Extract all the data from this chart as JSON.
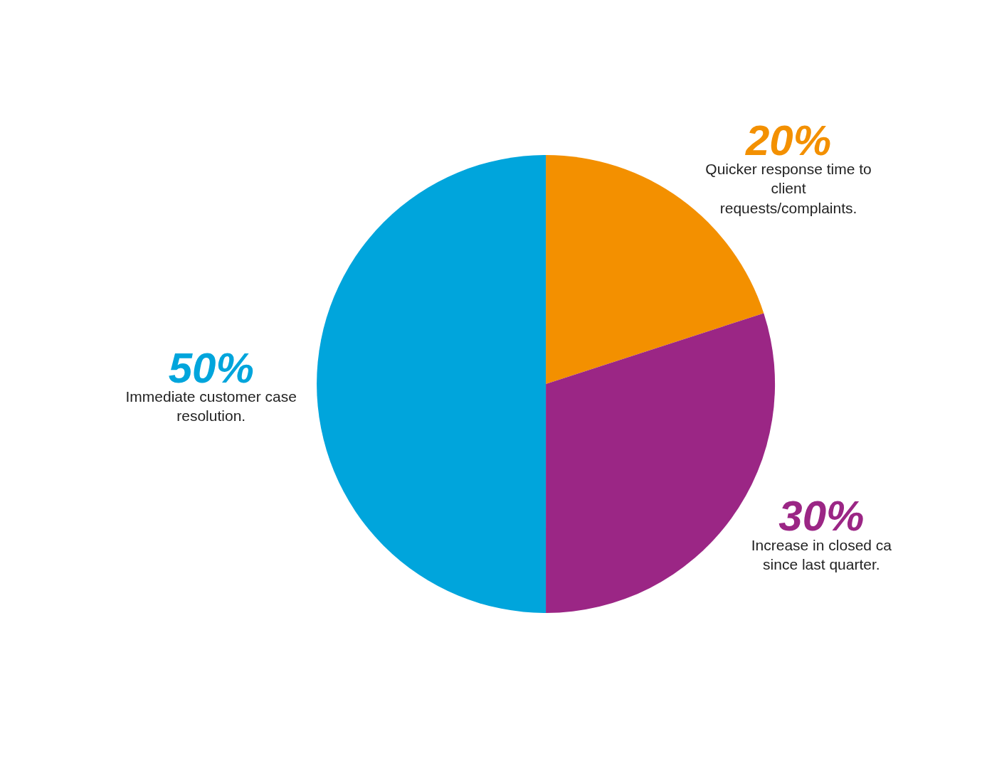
{
  "chart_data": {
    "type": "pie",
    "categories": [
      "Quicker response time to client requests/complaints.",
      "Increase in closed ca since last quarter.",
      "Immediate customer case resolution."
    ],
    "values": [
      20,
      30,
      50
    ],
    "colors": [
      "#f39000",
      "#9b2685",
      "#00a5dc"
    ],
    "value_labels": [
      "20%",
      "30%",
      "50%"
    ],
    "legend": false
  }
}
